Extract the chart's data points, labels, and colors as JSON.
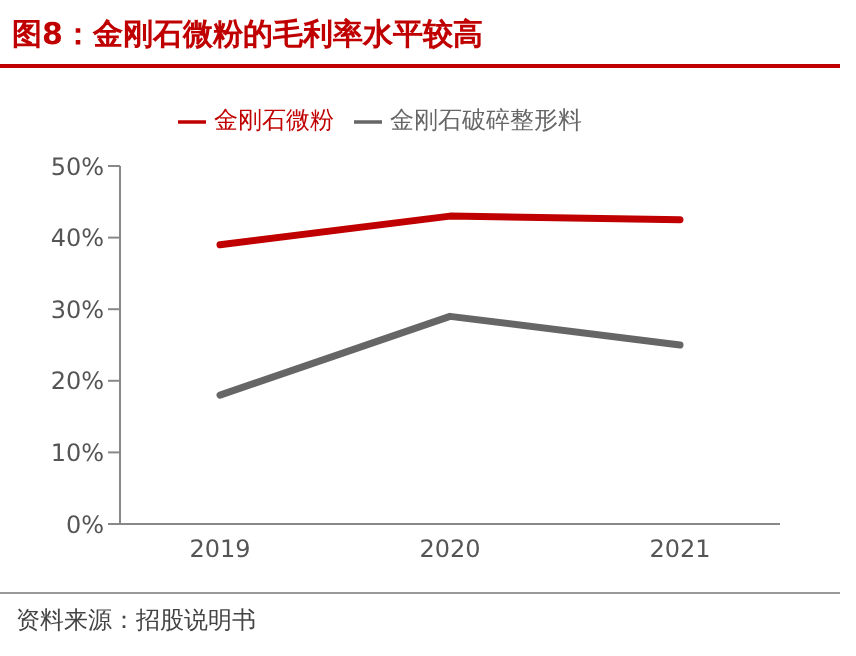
{
  "chart_data": {
    "type": "line",
    "title": "图8：金刚石微粉的毛利率水平较高",
    "categories": [
      "2019",
      "2020",
      "2021"
    ],
    "series": [
      {
        "name": "金刚石微粉",
        "color": "#c00000",
        "values": [
          39,
          43,
          42.5
        ]
      },
      {
        "name": "金刚石破碎整形料",
        "color": "#666666",
        "values": [
          18,
          29,
          25
        ]
      }
    ],
    "ylim": [
      0,
      50
    ],
    "yticks": [
      {
        "value": 0,
        "label": "0%"
      },
      {
        "value": 10,
        "label": "10%"
      },
      {
        "value": 20,
        "label": "20%"
      },
      {
        "value": 30,
        "label": "30%"
      },
      {
        "value": 40,
        "label": "40%"
      },
      {
        "value": 50,
        "label": "50%"
      }
    ],
    "grid": false,
    "legend": "top",
    "marker": "none",
    "line_style": "solid",
    "annotations": [
      "资料来源：招股说明书"
    ]
  }
}
